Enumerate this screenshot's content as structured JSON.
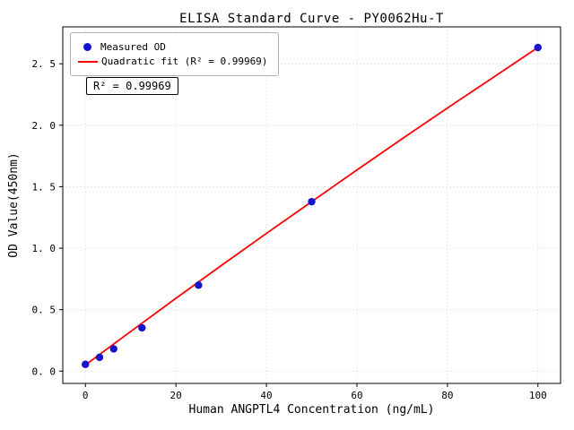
{
  "chart_data": {
    "type": "scatter",
    "title": "ELISA Standard Curve - PY0062Hu-T",
    "xlabel": "Human ANGPTL4 Concentration (ng/mL)",
    "ylabel": "OD Value(450nm)",
    "xlim": [
      -5,
      105
    ],
    "ylim": [
      -0.1,
      2.8
    ],
    "xticks": [
      0,
      20,
      40,
      60,
      80,
      100
    ],
    "xtick_labels": [
      "0",
      "20",
      "40",
      "60",
      "80",
      "100"
    ],
    "yticks": [
      0,
      0.5,
      1.0,
      1.5,
      2.0,
      2.5
    ],
    "ytick_labels": [
      "0. 0",
      "0. 5",
      "1. 0",
      "1. 5",
      "2. 0",
      "2. 5"
    ],
    "grid": true,
    "legend_position": "upper-left",
    "annotation_text": "R² = 0.99969",
    "colors": {
      "scatter": "#1414cd",
      "fit_line": "#ff0000",
      "grid": "#c9c9c9",
      "axis": "#000000",
      "background": "#ffffff"
    },
    "series": [
      {
        "name": "Measured OD",
        "kind": "scatter",
        "color": "#1414cd",
        "x": [
          0,
          3.125,
          6.25,
          12.5,
          25,
          50,
          100
        ],
        "y": [
          0.055,
          0.112,
          0.181,
          0.352,
          0.699,
          1.378,
          2.632
        ]
      },
      {
        "name": "Quadratic fit (R² = 0.99969)",
        "kind": "line",
        "color": "#ff0000",
        "x": [
          0,
          10,
          20,
          30,
          40,
          50,
          60,
          70,
          80,
          90,
          100
        ],
        "y": [
          0.05,
          0.322,
          0.592,
          0.858,
          1.12,
          1.378,
          1.636,
          1.89,
          2.14,
          2.386,
          2.632
        ]
      }
    ]
  }
}
